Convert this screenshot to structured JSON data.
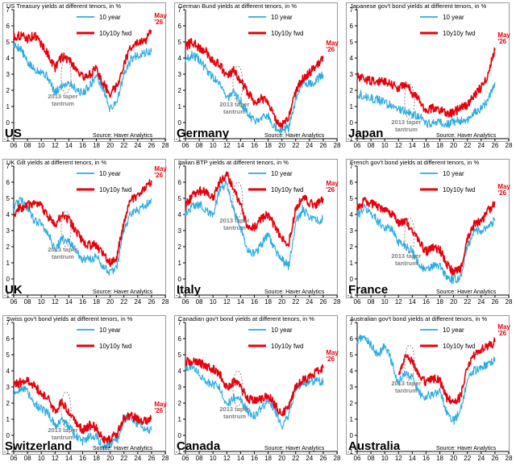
{
  "chart_data": [
    {
      "type": "line",
      "title": "US Treasury yields at different tenors, in %",
      "country": "US",
      "source": "Source: Haver Analytics",
      "annotation_end": "May '26",
      "annotation_taper": "2013 taper tantrum",
      "xlim": [
        6,
        28
      ],
      "ylim": [
        -1,
        7
      ],
      "xticks": [
        "06",
        "08",
        "10",
        "12",
        "14",
        "16",
        "18",
        "20",
        "22",
        "24",
        "26",
        "28"
      ],
      "yticks": [
        "-1",
        "0",
        "1",
        "2",
        "3",
        "4",
        "5",
        "6",
        "7"
      ],
      "legend": "top-right",
      "x": [
        6,
        7,
        8,
        9,
        10,
        11,
        12,
        13,
        14,
        15,
        16,
        17,
        18,
        19,
        20,
        21,
        22,
        23,
        24,
        25,
        26
      ],
      "series": [
        {
          "name": "10 year",
          "color": "#29ABE2",
          "values": [
            4.8,
            4.6,
            3.7,
            3.3,
            3.2,
            2.8,
            1.8,
            2.3,
            2.5,
            2.1,
            1.8,
            2.3,
            2.9,
            2.1,
            0.8,
            1.4,
            2.9,
            3.9,
            4.2,
            4.3,
            4.4
          ]
        },
        {
          "name": "10y10y fwd",
          "color": "#E8000B",
          "values": [
            5.3,
            5.4,
            5.2,
            5.4,
            4.9,
            4.2,
            3.4,
            4.1,
            3.9,
            3.4,
            2.8,
            3.0,
            3.3,
            2.4,
            1.8,
            2.3,
            3.6,
            4.7,
            4.9,
            5.0,
            5.7
          ]
        }
      ]
    },
    {
      "type": "line",
      "title": "German Bund yields at different tenors, in %",
      "country": "Germany",
      "source": "Source: Haver Analytics",
      "annotation_end": "May '26",
      "annotation_taper": "2013 taper tantrum",
      "xlim": [
        6,
        28
      ],
      "ylim": [
        -1,
        7
      ],
      "xticks": [
        "06",
        "08",
        "10",
        "12",
        "14",
        "16",
        "18",
        "20",
        "22",
        "24",
        "26",
        "28"
      ],
      "yticks": [
        "-1",
        "0",
        "1",
        "2",
        "3",
        "4",
        "5",
        "6",
        "7"
      ],
      "legend": "top-right",
      "x": [
        6,
        7,
        8,
        9,
        10,
        11,
        12,
        13,
        14,
        15,
        16,
        17,
        18,
        19,
        20,
        21,
        22,
        23,
        24,
        25,
        26
      ],
      "series": [
        {
          "name": "10 year",
          "color": "#29ABE2",
          "values": [
            3.9,
            4.2,
            3.9,
            3.3,
            2.8,
            2.5,
            1.5,
            1.8,
            1.3,
            0.6,
            0.1,
            0.4,
            0.4,
            -0.3,
            -0.5,
            -0.3,
            1.5,
            2.4,
            2.4,
            2.6,
            3.0
          ]
        },
        {
          "name": "10y10y fwd",
          "color": "#E8000B",
          "values": [
            4.7,
            5.0,
            4.6,
            4.4,
            3.8,
            3.6,
            2.8,
            3.2,
            2.6,
            1.9,
            1.3,
            1.5,
            1.4,
            0.2,
            -0.2,
            0.3,
            2.0,
            2.7,
            3.1,
            3.5,
            4.0
          ]
        }
      ]
    },
    {
      "type": "line",
      "title": "Japanese gov't bond yields at different tenors, in %",
      "country": "Japan",
      "source": "Source: Haver Analytics",
      "annotation_end": "May '26",
      "annotation_taper": "2013 taper tantrum",
      "xlim": [
        6,
        28
      ],
      "ylim": [
        -1,
        7
      ],
      "xticks": [
        "06",
        "08",
        "10",
        "12",
        "14",
        "16",
        "18",
        "20",
        "22",
        "24",
        "26",
        "28"
      ],
      "yticks": [
        "-1",
        "0",
        "1",
        "2",
        "3",
        "4",
        "5",
        "6",
        "7"
      ],
      "legend": "top-right",
      "x": [
        6,
        7,
        8,
        9,
        10,
        11,
        12,
        13,
        14,
        15,
        16,
        17,
        18,
        19,
        20,
        21,
        22,
        23,
        24,
        25,
        26
      ],
      "series": [
        {
          "name": "10 year",
          "color": "#29ABE2",
          "values": [
            1.8,
            1.7,
            1.5,
            1.4,
            1.2,
            1.1,
            0.8,
            0.7,
            0.5,
            0.4,
            -0.1,
            0.05,
            0.05,
            -0.1,
            0.0,
            0.1,
            0.2,
            0.6,
            0.9,
            1.4,
            2.5
          ]
        },
        {
          "name": "10y10y fwd",
          "color": "#E8000B",
          "values": [
            2.8,
            2.7,
            2.6,
            2.5,
            2.6,
            2.4,
            2.1,
            2.4,
            1.8,
            1.4,
            0.7,
            0.9,
            0.8,
            0.6,
            0.6,
            0.9,
            1.1,
            1.7,
            2.2,
            3.0,
            4.5
          ]
        }
      ]
    },
    {
      "type": "line",
      "title": "UK Gilt yields at different tenors, in %",
      "country": "UK",
      "source": "Source: Haver Analytics",
      "annotation_end": "May '26",
      "annotation_taper": "2013 taper tantrum",
      "xlim": [
        6,
        28
      ],
      "ylim": [
        -1,
        7
      ],
      "xticks": [
        "06",
        "08",
        "10",
        "12",
        "14",
        "16",
        "18",
        "20",
        "22",
        "24",
        "26",
        "28"
      ],
      "yticks": [
        "-1",
        "0",
        "1",
        "2",
        "3",
        "4",
        "5",
        "6",
        "7"
      ],
      "legend": "top-right",
      "x": [
        6,
        7,
        8,
        9,
        10,
        11,
        12,
        13,
        14,
        15,
        16,
        17,
        18,
        19,
        20,
        21,
        22,
        23,
        24,
        25,
        26
      ],
      "series": [
        {
          "name": "10 year",
          "color": "#29ABE2",
          "values": [
            4.4,
            5.0,
            4.4,
            3.6,
            3.5,
            2.8,
            1.8,
            2.5,
            2.3,
            1.8,
            1.2,
            1.2,
            1.4,
            0.8,
            0.3,
            0.9,
            3.0,
            4.1,
            4.2,
            4.5,
            5.0
          ]
        },
        {
          "name": "10y10y fwd",
          "color": "#E8000B",
          "values": [
            4.0,
            4.4,
            4.6,
            4.6,
            4.5,
            3.9,
            3.3,
            4.0,
            3.7,
            3.0,
            2.3,
            2.1,
            2.1,
            1.5,
            1.0,
            1.4,
            3.6,
            4.9,
            5.2,
            5.6,
            6.1
          ]
        }
      ]
    },
    {
      "type": "line",
      "title": "Italian BTP yields at different tenors, in %",
      "country": "Italy",
      "source": "Source: Haver Analytics",
      "annotation_end": "May '26",
      "annotation_taper": "2013 taper tantrum",
      "xlim": [
        6,
        28
      ],
      "ylim": [
        -1,
        7
      ],
      "xticks": [
        "06",
        "08",
        "10",
        "12",
        "14",
        "16",
        "18",
        "20",
        "22",
        "24",
        "26",
        "28"
      ],
      "yticks": [
        "-1",
        "0",
        "1",
        "2",
        "3",
        "4",
        "5",
        "6",
        "7"
      ],
      "legend": "top-right",
      "x": [
        6,
        7,
        8,
        9,
        10,
        11,
        12,
        13,
        14,
        15,
        16,
        17,
        18,
        19,
        20,
        21,
        22,
        23,
        24,
        25,
        26
      ],
      "series": [
        {
          "name": "10 year",
          "color": "#29ABE2",
          "values": [
            4.0,
            4.5,
            4.6,
            4.3,
            4.0,
            5.5,
            6.0,
            4.3,
            3.2,
            1.8,
            1.5,
            2.1,
            2.8,
            1.8,
            1.2,
            0.8,
            3.5,
            4.3,
            3.9,
            3.6,
            3.7
          ]
        },
        {
          "name": "10y10y fwd",
          "color": "#E8000B",
          "values": [
            4.5,
            5.2,
            5.5,
            5.4,
            5.0,
            6.0,
            6.5,
            5.6,
            4.6,
            3.2,
            3.2,
            3.7,
            4.0,
            3.2,
            2.5,
            2.2,
            4.3,
            5.1,
            4.7,
            4.6,
            5.0
          ]
        }
      ]
    },
    {
      "type": "line",
      "title": "French gov't bond yields at different tenors, in %",
      "country": "France",
      "source": "Source: Haver Analytics",
      "annotation_end": "May '26",
      "annotation_taper": "2013 taper tantrum",
      "xlim": [
        6,
        28
      ],
      "ylim": [
        -1,
        7
      ],
      "xticks": [
        "06",
        "08",
        "10",
        "12",
        "14",
        "16",
        "18",
        "20",
        "22",
        "24",
        "26",
        "28"
      ],
      "yticks": [
        "-1",
        "0",
        "1",
        "2",
        "3",
        "4",
        "5",
        "6",
        "7"
      ],
      "legend": "top-right",
      "x": [
        6,
        7,
        8,
        9,
        10,
        11,
        12,
        13,
        14,
        15,
        16,
        17,
        18,
        19,
        20,
        21,
        22,
        23,
        24,
        25,
        26
      ],
      "series": [
        {
          "name": "10 year",
          "color": "#29ABE2",
          "values": [
            3.9,
            4.4,
            4.1,
            3.6,
            3.2,
            3.1,
            2.3,
            2.1,
            1.7,
            0.9,
            0.5,
            0.8,
            0.8,
            0.1,
            -0.1,
            0.1,
            2.0,
            3.0,
            3.0,
            3.3,
            3.6
          ]
        },
        {
          "name": "10y10y fwd",
          "color": "#E8000B",
          "values": [
            4.4,
            4.8,
            4.7,
            4.5,
            4.2,
            4.0,
            3.5,
            3.6,
            3.0,
            2.3,
            1.7,
            1.9,
            1.8,
            0.9,
            0.4,
            0.6,
            2.4,
            3.4,
            3.6,
            4.2,
            4.8
          ]
        }
      ]
    },
    {
      "type": "line",
      "title": "Swiss gov't bond yields at different tenors, in %",
      "country": "Switzerland",
      "source": "Source: Haver Analytics",
      "annotation_end": "May '26",
      "annotation_taper": "2013 taper tantrum",
      "xlim": [
        6,
        28
      ],
      "ylim": [
        -1,
        7
      ],
      "xticks": [
        "06",
        "08",
        "10",
        "12",
        "14",
        "16",
        "18",
        "20",
        "22",
        "24",
        "26",
        "28"
      ],
      "yticks": [
        "-1",
        "0",
        "1",
        "2",
        "3",
        "4",
        "5",
        "6",
        "7"
      ],
      "legend": "top-right",
      "x": [
        6,
        7,
        8,
        9,
        10,
        11,
        12,
        13,
        14,
        15,
        16,
        17,
        18,
        19,
        20,
        21,
        22,
        23,
        24,
        25,
        26
      ],
      "series": [
        {
          "name": "10 year",
          "color": "#29ABE2",
          "values": [
            2.5,
            3.0,
            2.7,
            2.0,
            1.6,
            1.4,
            0.6,
            1.0,
            0.6,
            0.0,
            -0.4,
            -0.1,
            0.0,
            -0.7,
            -0.5,
            -0.3,
            1.0,
            1.1,
            0.7,
            0.5,
            0.3
          ]
        },
        {
          "name": "10y10y fwd",
          "color": "#E8000B",
          "values": [
            3.1,
            3.3,
            3.4,
            3.1,
            2.6,
            2.3,
            1.4,
            2.1,
            1.5,
            0.8,
            0.3,
            0.6,
            0.5,
            -0.3,
            -0.2,
            0.1,
            1.1,
            1.2,
            1.0,
            0.9,
            1.0
          ]
        }
      ]
    },
    {
      "type": "line",
      "title": "Canadian gov't bond yields at different tenors, in %",
      "country": "Canada",
      "source": "Source: Haver Analytics",
      "annotation_end": "May '26",
      "annotation_taper": "2013 taper tantrum",
      "xlim": [
        6,
        28
      ],
      "ylim": [
        -1,
        7
      ],
      "xticks": [
        "06",
        "08",
        "10",
        "12",
        "14",
        "16",
        "18",
        "20",
        "22",
        "24",
        "26",
        "28"
      ],
      "yticks": [
        "-1",
        "0",
        "1",
        "2",
        "3",
        "4",
        "5",
        "6",
        "7"
      ],
      "legend": "top-right",
      "x": [
        6,
        7,
        8,
        9,
        10,
        11,
        12,
        13,
        14,
        15,
        16,
        17,
        18,
        19,
        20,
        21,
        22,
        23,
        24,
        25,
        26
      ],
      "series": [
        {
          "name": "10 year",
          "color": "#29ABE2",
          "values": [
            4.2,
            4.3,
            3.8,
            3.3,
            3.2,
            2.9,
            1.9,
            2.3,
            2.2,
            1.5,
            1.2,
            1.7,
            2.2,
            1.5,
            0.6,
            1.3,
            2.9,
            3.3,
            3.3,
            3.3,
            3.4
          ]
        },
        {
          "name": "10y10y fwd",
          "color": "#E8000B",
          "values": [
            4.6,
            4.6,
            4.5,
            4.3,
            4.1,
            3.8,
            3.0,
            3.3,
            3.0,
            2.3,
            2.1,
            2.3,
            2.5,
            1.9,
            1.3,
            1.9,
            3.0,
            3.4,
            3.6,
            3.9,
            4.2
          ]
        }
      ]
    },
    {
      "type": "line",
      "title": "Australian gov't bond yields at different tenors, in %",
      "country": "Australia",
      "source": "Source: Haver Analytics",
      "annotation_end": "May '26",
      "annotation_taper": "2013 taper tantrum",
      "xlim": [
        6,
        28
      ],
      "ylim": [
        -1,
        7
      ],
      "xticks": [
        "06",
        "08",
        "10",
        "12",
        "14",
        "16",
        "18",
        "20",
        "22",
        "24",
        "26",
        "28"
      ],
      "yticks": [
        "-1",
        "0",
        "1",
        "2",
        "3",
        "4",
        "5",
        "6",
        "7"
      ],
      "legend": "top-right",
      "x": [
        6,
        7,
        8,
        9,
        10,
        11,
        12,
        13,
        14,
        15,
        16,
        17,
        18,
        19,
        20,
        21,
        22,
        23,
        24,
        25,
        26
      ],
      "series": [
        {
          "name": "10 year",
          "color": "#29ABE2",
          "values": [
            5.8,
            6.2,
            5.6,
            4.9,
            5.6,
            4.6,
            3.2,
            3.9,
            3.6,
            2.6,
            2.4,
            2.6,
            2.7,
            1.5,
            0.9,
            1.5,
            3.5,
            4.0,
            4.2,
            4.4,
            4.8
          ]
        },
        {
          "name": "10y10y fwd",
          "color": "#E8000B",
          "values": [
            null,
            null,
            null,
            null,
            null,
            null,
            3.8,
            5.0,
            4.6,
            3.6,
            3.3,
            3.5,
            3.4,
            2.3,
            2.0,
            2.4,
            4.2,
            5.0,
            5.3,
            5.5,
            5.8
          ]
        }
      ]
    }
  ]
}
